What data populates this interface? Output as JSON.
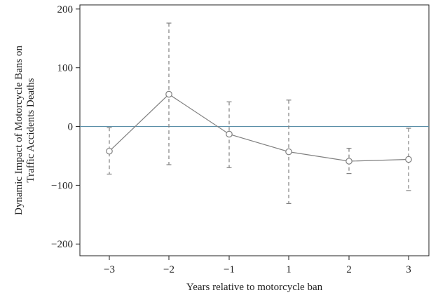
{
  "chart_data": {
    "type": "line",
    "title": "",
    "xlabel": "Years relative to motorcycle ban",
    "ylabel_lines": [
      "Dynamic Impact of Motorcycle Bans on",
      "Traffic Accidents Deaths"
    ],
    "categories": [
      "−3",
      "−2",
      "−1",
      "1",
      "2",
      "3"
    ],
    "y_ticks": [
      200,
      100,
      0,
      -100,
      -200
    ],
    "y_tick_labels": [
      "200",
      "100",
      "0",
      "−100",
      "−200"
    ],
    "ylim": [
      -220,
      207
    ],
    "reference_line_y": 0,
    "grid": false,
    "series": [
      {
        "values": [
          -42,
          55,
          -13,
          -43,
          -59,
          -56
        ],
        "ci_lower": [
          -81,
          -65,
          -70,
          -131,
          -80,
          -109
        ],
        "ci_upper": [
          -2,
          176,
          42,
          45,
          -37,
          -3
        ]
      }
    ],
    "colors": {
      "line": "#808080",
      "errorbar": "#808080",
      "reference_line": "#5b8fa8",
      "axis": "#222222"
    }
  }
}
